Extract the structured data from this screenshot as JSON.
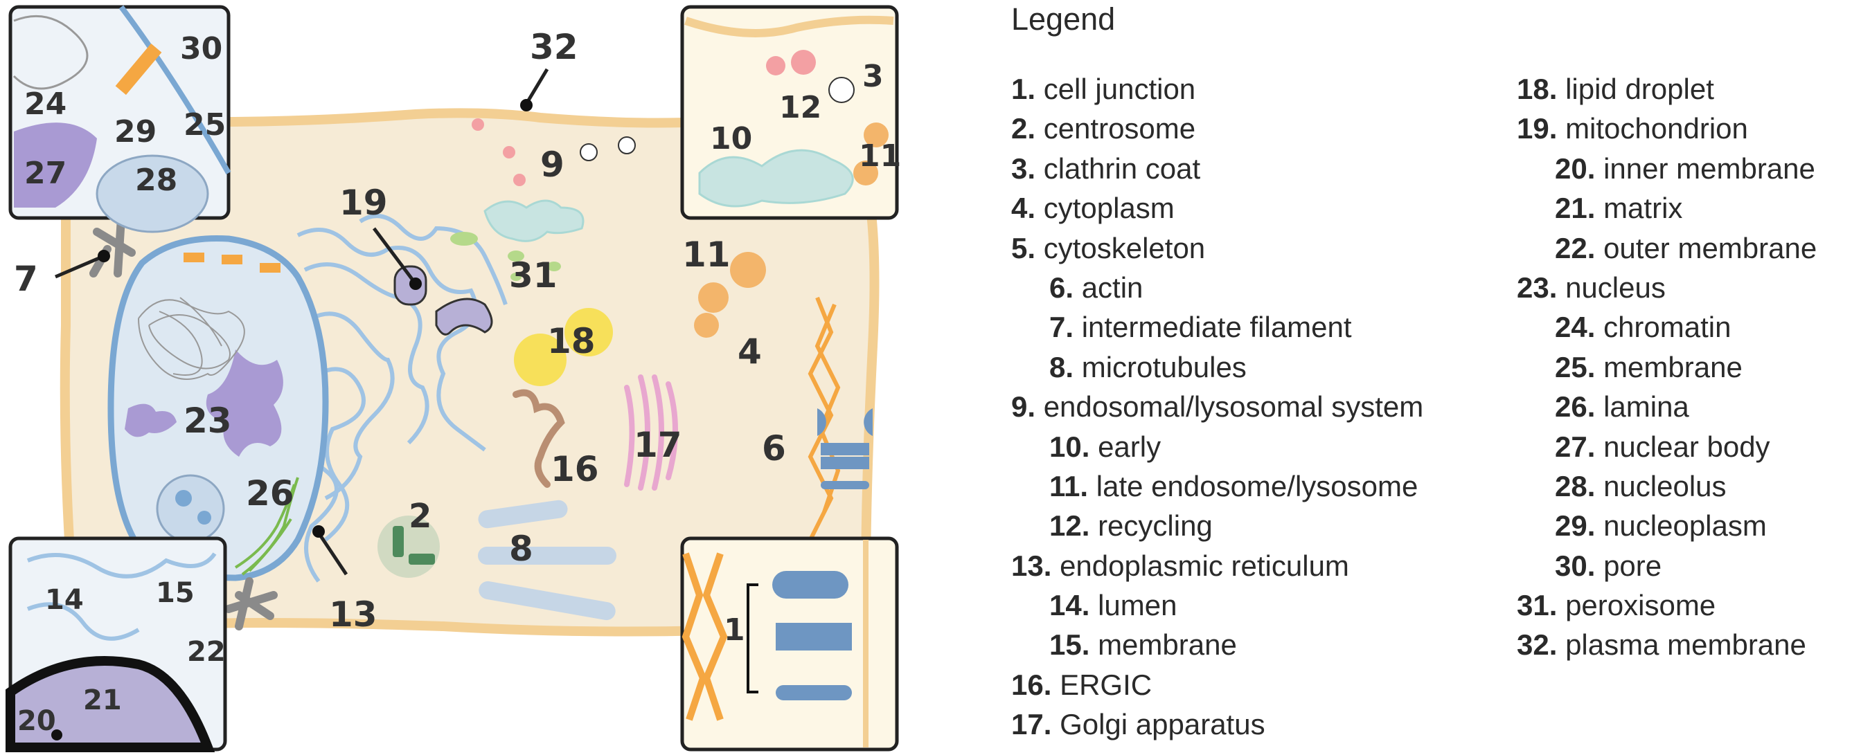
{
  "labels": {
    "l1": "1",
    "l2": "2",
    "l3": "3",
    "l4": "4",
    "l6": "6",
    "l7": "7",
    "l8": "8",
    "l9": "9",
    "l10": "10",
    "l11a": "11",
    "l11b": "11",
    "l12": "12",
    "l13": "13",
    "l14": "14",
    "l15": "15",
    "l16": "16",
    "l17": "17",
    "l18": "18",
    "l19": "19",
    "l20": "20",
    "l21": "21",
    "l22": "22",
    "l23": "23",
    "l24": "24",
    "l25": "25",
    "l26": "26",
    "l27": "27",
    "l28": "28",
    "l29": "29",
    "l30": "30",
    "l31": "31",
    "l32": "32"
  },
  "legend": {
    "title": "Legend",
    "col1": [
      {
        "n": "1.",
        "text": "cell junction",
        "sub": false
      },
      {
        "n": "2.",
        "text": "centrosome",
        "sub": false
      },
      {
        "n": "3.",
        "text": "clathrin coat",
        "sub": false
      },
      {
        "n": "4.",
        "text": "cytoplasm",
        "sub": false
      },
      {
        "n": "5.",
        "text": "cytoskeleton",
        "sub": false
      },
      {
        "n": "6.",
        "text": "actin",
        "sub": true
      },
      {
        "n": "7.",
        "text": "intermediate filament",
        "sub": true
      },
      {
        "n": "8.",
        "text": "microtubules",
        "sub": true
      },
      {
        "n": "9.",
        "text": "endosomal/lysosomal system",
        "sub": false
      },
      {
        "n": "10.",
        "text": "early",
        "sub": true
      },
      {
        "n": "11.",
        "text": "late endosome/lysosome",
        "sub": true
      },
      {
        "n": "12.",
        "text": "recycling",
        "sub": true
      },
      {
        "n": "13.",
        "text": "endoplasmic reticulum",
        "sub": false
      },
      {
        "n": "14.",
        "text": "lumen",
        "sub": true
      },
      {
        "n": "15.",
        "text": "membrane",
        "sub": true
      },
      {
        "n": "16.",
        "text": "ERGIC",
        "sub": false
      },
      {
        "n": "17.",
        "text": "Golgi apparatus",
        "sub": false
      }
    ],
    "col2": [
      {
        "n": "18.",
        "text": "lipid droplet",
        "sub": false
      },
      {
        "n": "19.",
        "text": "mitochondrion",
        "sub": false
      },
      {
        "n": "20.",
        "text": "inner membrane",
        "sub": true
      },
      {
        "n": "21.",
        "text": "matrix",
        "sub": true
      },
      {
        "n": "22.",
        "text": "outer membrane",
        "sub": true
      },
      {
        "n": "23.",
        "text": "nucleus",
        "sub": false
      },
      {
        "n": "24.",
        "text": "chromatin",
        "sub": true
      },
      {
        "n": "25.",
        "text": "membrane",
        "sub": true
      },
      {
        "n": "26.",
        "text": "lamina",
        "sub": true
      },
      {
        "n": "27.",
        "text": "nuclear body",
        "sub": true
      },
      {
        "n": "28.",
        "text": "nucleolus",
        "sub": true
      },
      {
        "n": "29.",
        "text": "nucleoplasm",
        "sub": true
      },
      {
        "n": "30.",
        "text": "pore",
        "sub": true
      },
      {
        "n": "31.",
        "text": "peroxisome",
        "sub": false
      },
      {
        "n": "32.",
        "text": "plasma membrane",
        "sub": false
      }
    ]
  },
  "colors": {
    "cytoplasm": "#f6ebd6",
    "membrane": "#f3d5a0",
    "nucleus_fill": "#dde8f2",
    "nucleus_membrane": "#7aa7d2",
    "er": "#9fc3e4",
    "actin": "#f5a742",
    "golgi": "#e8a7cf",
    "lipid": "#f7e05a",
    "mito": "#b7b0d6",
    "peroxisome": "#b5d98a",
    "lysosome": "#f3b56b",
    "endosome": "#a9d8d4",
    "recycling": "#f3a0a3",
    "nuclear_body": "#a99ad3",
    "ergic": "#b98e72",
    "chromatin": "#999999",
    "junction": "#6e96c2",
    "centrosome": "#4e8a5c",
    "inset_bg": "#fdf7e6"
  }
}
